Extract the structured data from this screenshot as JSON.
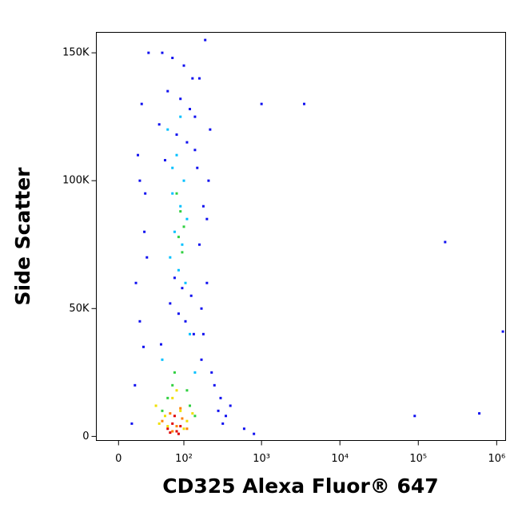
{
  "chart_data": {
    "type": "scatter",
    "x_label": "CD325 Alexa Fluor® 647",
    "y_label": "Side Scatter",
    "xscale": "arcsinh",
    "xlim": [
      -21,
      1300000
    ],
    "xticks": [
      0,
      {
        "value": 100,
        "label": "10²"
      },
      {
        "value": 1000,
        "label": "10³"
      },
      {
        "value": 10000,
        "label": "10⁴"
      },
      {
        "value": 100000,
        "label": "10⁵"
      },
      {
        "value": 1000000,
        "label": "10⁶"
      }
    ],
    "ylim": [
      -1600,
      158000
    ],
    "yticks": [
      0,
      {
        "value": 50000,
        "label": "50K"
      },
      {
        "value": 100000,
        "label": "100K"
      },
      {
        "value": 150000,
        "label": "150K"
      }
    ],
    "series": [
      {
        "color": "#1010f0",
        "x": [
          15,
          20,
          25,
          180,
          200,
          220,
          160,
          18,
          22,
          170,
          250,
          300,
          350,
          12,
          30,
          190,
          210,
          28,
          26,
          160,
          170,
          180,
          230,
          280,
          320,
          400,
          600,
          800,
          1000,
          3500,
          90000,
          220000,
          600000,
          1200000,
          16,
          24,
          200,
          150,
          140,
          20,
          50,
          70,
          100,
          130,
          60,
          90,
          120,
          45,
          80,
          110,
          140,
          55,
          75,
          95,
          125,
          65,
          85,
          105,
          135,
          48
        ],
        "y": [
          20000,
          45000,
          80000,
          90000,
          60000,
          120000,
          140000,
          110000,
          130000,
          30000,
          20000,
          15000,
          8000,
          5000,
          150000,
          155000,
          100000,
          70000,
          95000,
          75000,
          50000,
          40000,
          25000,
          10000,
          5000,
          12000,
          3000,
          1000,
          130000,
          130000,
          8000,
          76000,
          9000,
          41000,
          60000,
          35000,
          85000,
          105000,
          125000,
          100000,
          150000,
          148000,
          145000,
          140000,
          135000,
          132000,
          128000,
          122000,
          118000,
          115000,
          112000,
          108000,
          62000,
          58000,
          55000,
          52000,
          48000,
          45000,
          40000,
          36000
        ]
      },
      {
        "color": "#00c0ff",
        "x": [
          60,
          80,
          100,
          70,
          90,
          110,
          75,
          95,
          65,
          85,
          105,
          120,
          50,
          140,
          70,
          90
        ],
        "y": [
          120000,
          110000,
          100000,
          95000,
          90000,
          85000,
          80000,
          75000,
          70000,
          65000,
          60000,
          40000,
          30000,
          25000,
          105000,
          125000
        ]
      },
      {
        "color": "#30d040",
        "x": [
          80,
          90,
          100,
          85,
          95,
          70,
          110,
          60,
          120,
          75,
          140,
          50
        ],
        "y": [
          95000,
          88000,
          82000,
          78000,
          72000,
          20000,
          18000,
          15000,
          12000,
          25000,
          8000,
          10000
        ]
      },
      {
        "color": "#f0e000",
        "x": [
          40,
          55,
          70,
          90,
          110,
          130,
          60,
          80,
          100,
          45
        ],
        "y": [
          12000,
          8000,
          15000,
          10000,
          6000,
          9000,
          4000,
          18000,
          3000,
          5000
        ]
      },
      {
        "color": "#ff8000",
        "x": [
          50,
          65,
          80,
          95,
          110,
          70,
          90
        ],
        "y": [
          6000,
          9000,
          4000,
          7000,
          3000,
          2000,
          11000
        ]
      },
      {
        "color": "#e00000",
        "x": [
          60,
          70,
          80,
          90,
          75,
          85,
          65
        ],
        "y": [
          3000,
          5000,
          2000,
          4000,
          8000,
          1000,
          1500
        ]
      }
    ]
  }
}
